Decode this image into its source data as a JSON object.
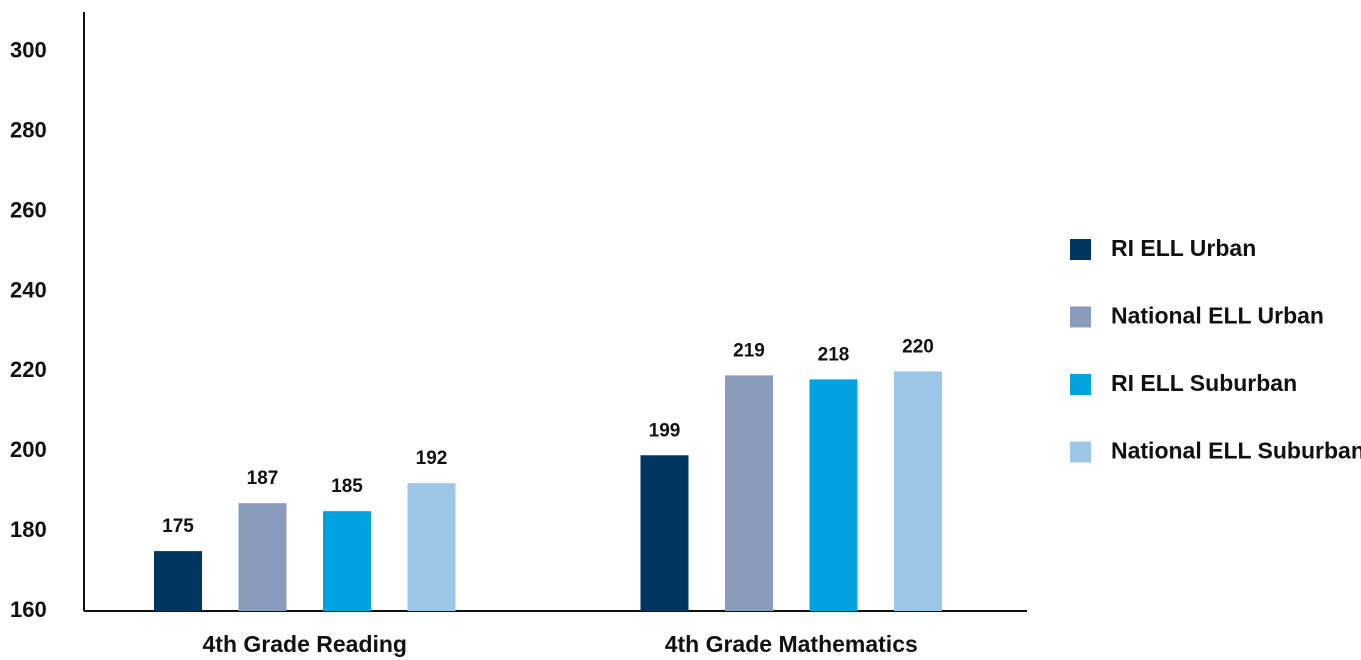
{
  "chart_data": {
    "type": "bar",
    "categories": [
      "4th Grade Reading",
      "4th Grade Mathematics"
    ],
    "series": [
      {
        "name": "RI ELL Urban",
        "color": "#003660",
        "values": [
          175,
          199
        ]
      },
      {
        "name": "National ELL Urban",
        "color": "#8a9bbb",
        "values": [
          187,
          219
        ]
      },
      {
        "name": "RI ELL Suburban",
        "color": "#00a3e0",
        "values": [
          185,
          218
        ]
      },
      {
        "name": "National ELL Suburban",
        "color": "#9dc7e8",
        "values": [
          192,
          220
        ]
      }
    ],
    "ylim": [
      160,
      310
    ],
    "yticks": [
      160,
      180,
      200,
      220,
      240,
      260,
      280,
      300
    ],
    "grid": false,
    "legend": "right"
  }
}
